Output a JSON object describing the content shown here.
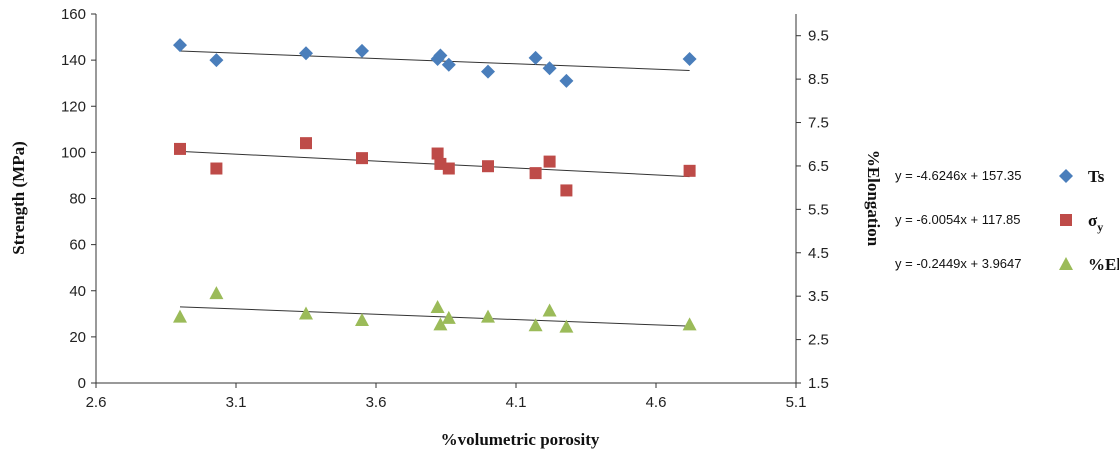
{
  "chart_data": {
    "type": "scatter",
    "title": "",
    "xlabel": "%volumetric porosity",
    "ylabel": "Strength (MPa)",
    "y2label": "%Elongation",
    "xlim": [
      2.6,
      5.1
    ],
    "ylim": [
      0,
      160
    ],
    "y2lim": [
      1.5,
      10
    ],
    "xticks": [
      "2.6",
      "3.1",
      "3.6",
      "4.1",
      "4.6",
      "5.1"
    ],
    "yticks": [
      "0",
      "20",
      "40",
      "60",
      "80",
      "100",
      "120",
      "140",
      "160"
    ],
    "y2ticks": [
      "1.5",
      "2.5",
      "3.5",
      "4.5",
      "5.5",
      "6.5",
      "7.5",
      "8.5",
      "9.5"
    ],
    "legend_position": "right",
    "series": [
      {
        "name": "Ts",
        "marker": "diamond",
        "color": "#4a7ebb",
        "trendline": "y = -4.6246x + 157.35",
        "slope": -4.6246,
        "intercept": 157.35,
        "axis": "left",
        "x": [
          2.9,
          3.03,
          3.35,
          3.55,
          3.82,
          3.83,
          3.86,
          4.0,
          4.17,
          4.22,
          4.28,
          4.72
        ],
        "y": [
          146.5,
          140,
          143,
          144,
          140.5,
          142,
          138,
          135,
          141,
          136.5,
          131,
          140.5
        ]
      },
      {
        "name": "σ",
        "name_sub": "y",
        "marker": "square",
        "color": "#be4b48",
        "trendline": "y = -6.0054x + 117.85",
        "slope": -6.0054,
        "intercept": 117.85,
        "axis": "left",
        "x": [
          2.9,
          3.03,
          3.35,
          3.55,
          3.82,
          3.83,
          3.86,
          4.0,
          4.17,
          4.22,
          4.28,
          4.72
        ],
        "y": [
          101.5,
          93,
          104,
          97.5,
          99.5,
          95,
          93,
          94,
          91,
          96,
          83.5,
          92
        ]
      },
      {
        "name": "%El",
        "marker": "triangle",
        "color": "#9bbb59",
        "trendline": "y = -0.2449x + 3.9647",
        "slope": -0.2449,
        "intercept": 3.9647,
        "axis": "right",
        "x": [
          2.9,
          3.03,
          3.35,
          3.55,
          3.82,
          3.83,
          3.86,
          4.0,
          4.17,
          4.22,
          4.28,
          4.72
        ],
        "y": [
          3.03,
          3.57,
          3.1,
          2.95,
          3.25,
          2.85,
          3.0,
          3.03,
          2.83,
          3.17,
          2.8,
          2.85
        ]
      }
    ]
  }
}
